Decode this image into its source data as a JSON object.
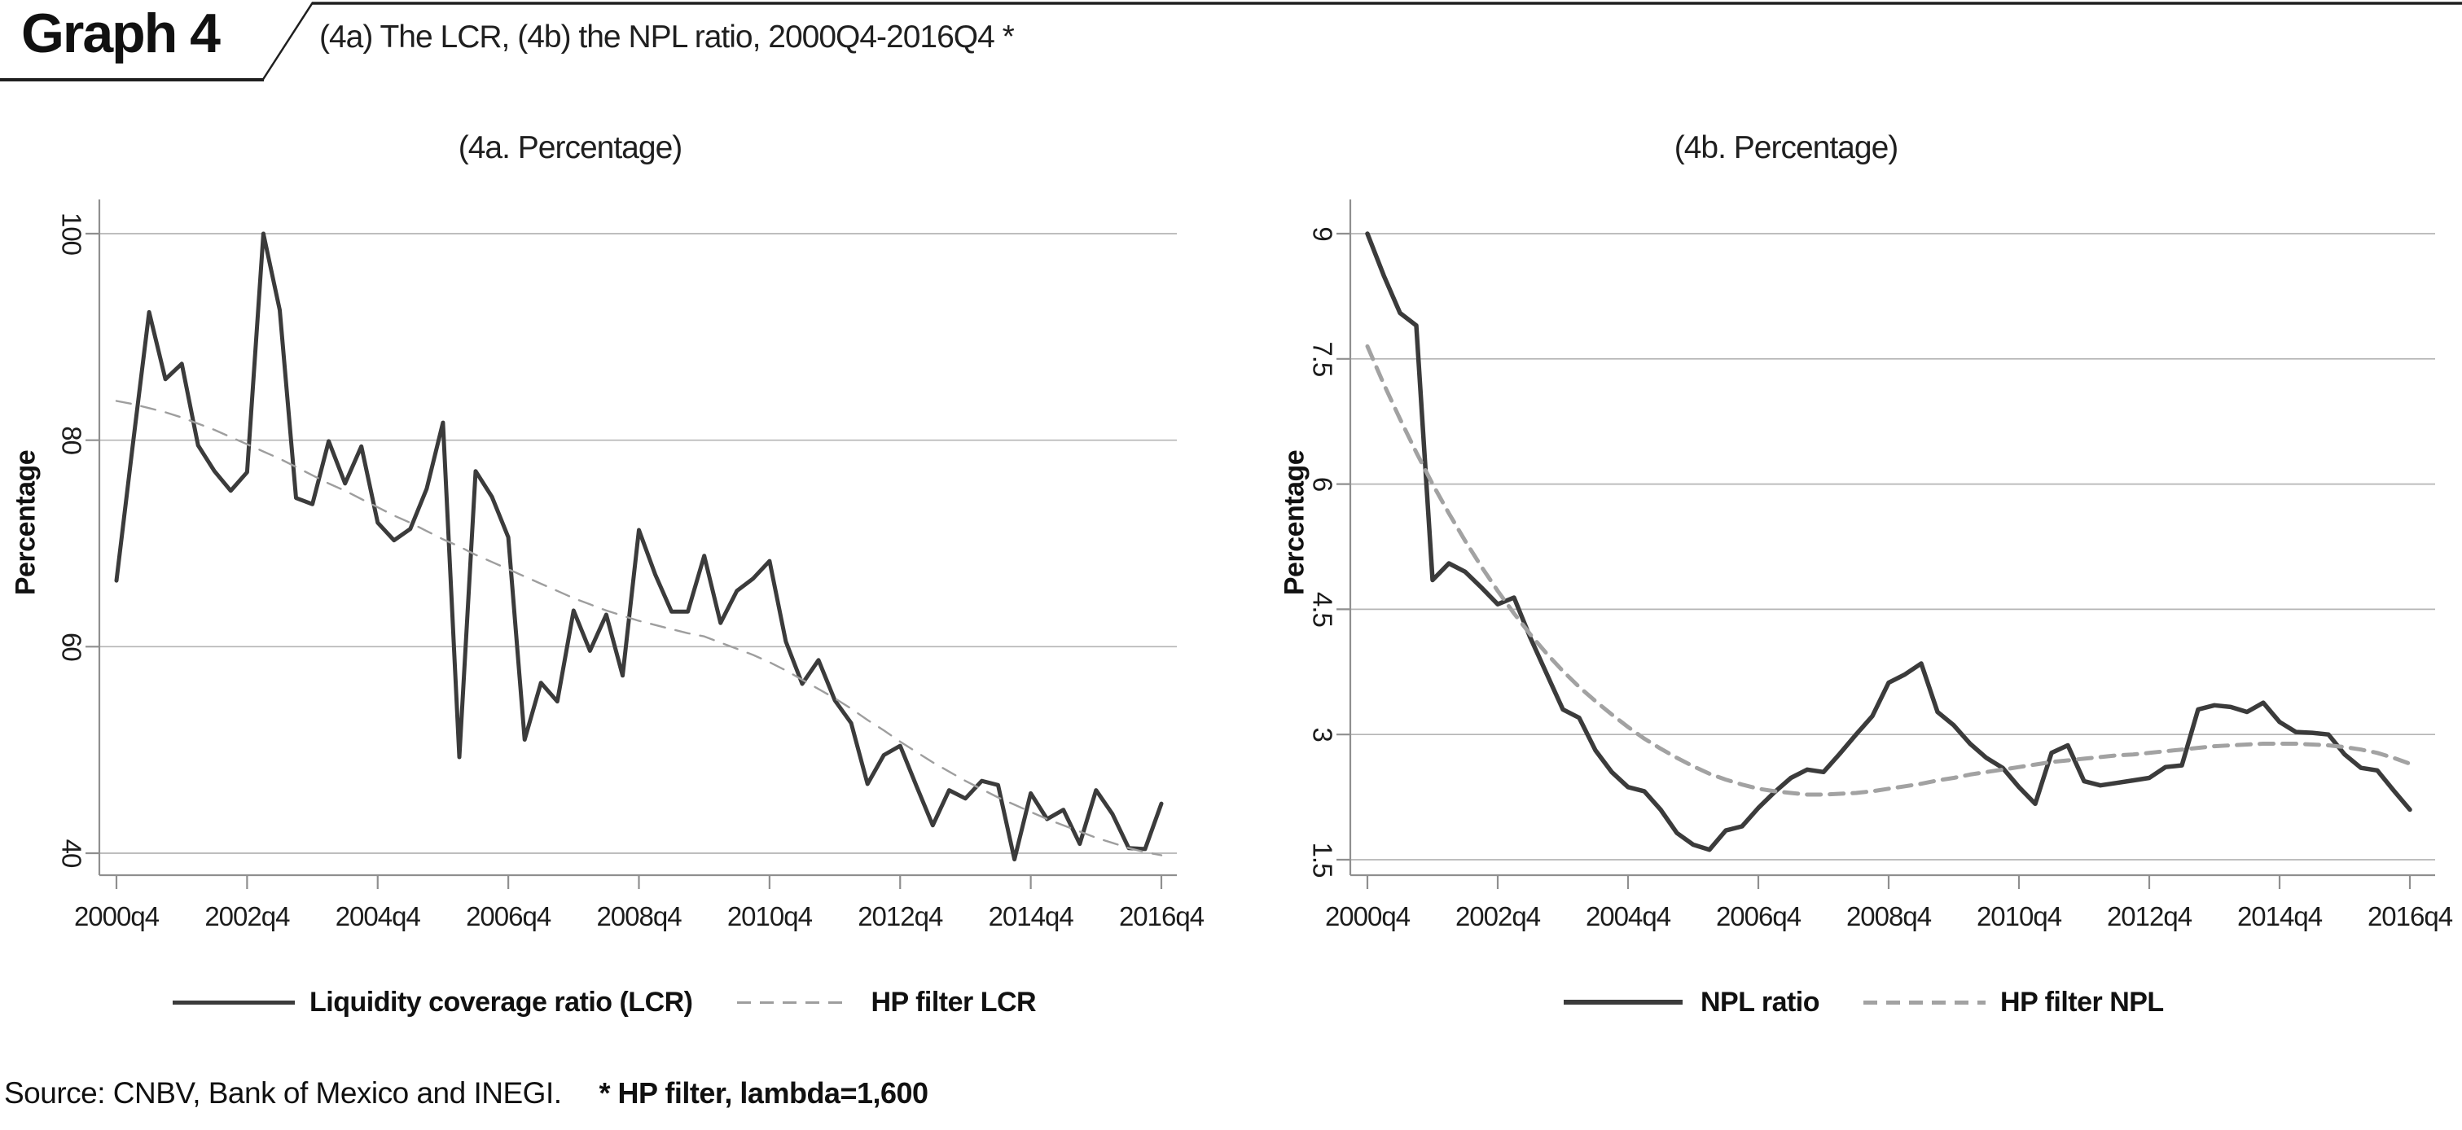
{
  "header": {
    "graph_label": "Graph 4",
    "title": "(4a) The LCR, (4b) the NPL ratio, 2000Q4-2016Q4 *"
  },
  "footer": {
    "source": "Source: CNBV, Bank of Mexico and INEGI.",
    "note": "* HP filter, lambda=1,600"
  },
  "palette": {
    "line_dark": "#3b3b3b",
    "hp_gray": "#9e9e9e",
    "grid": "#b5b5b5",
    "axis": "#8f8f8f",
    "text": "#1c1c1c"
  },
  "chart_data": [
    {
      "type": "line",
      "panel_title": "(4a. Percentage)",
      "ylabel": "Percentage",
      "x_tick_labels": [
        "2000q4",
        "2002q4",
        "2004q4",
        "2006q4",
        "2008q4",
        "2010q4",
        "2012q4",
        "2014q4",
        "2016q4"
      ],
      "quarters": 65,
      "yticks": [
        40,
        60,
        80,
        100
      ],
      "ylim": [
        37.9,
        103.3
      ],
      "grid": true,
      "legend_position": "bottom",
      "series": [
        {
          "name": "Liquidity coverage ratio (LCR)",
          "style": "solid",
          "color": "#3b3b3b",
          "width": 5,
          "values": [
            66.4,
            79.5,
            92.4,
            85.9,
            87.4,
            79.5,
            77.0,
            75.1,
            76.9,
            100.0,
            92.6,
            74.4,
            73.8,
            79.9,
            75.8,
            79.4,
            72.0,
            70.3,
            71.4,
            75.3,
            81.7,
            49.3,
            77.0,
            74.5,
            70.6,
            51.0,
            56.5,
            54.7,
            63.5,
            59.6,
            63.1,
            57.2,
            71.3,
            67.0,
            63.4,
            63.4,
            68.8,
            62.3,
            65.4,
            66.6,
            68.3,
            60.5,
            56.4,
            58.7,
            54.8,
            52.6,
            46.7,
            49.5,
            50.4,
            46.5,
            42.7,
            46.1,
            45.3,
            47.0,
            46.6,
            39.4,
            45.8,
            43.3,
            44.2,
            40.9,
            46.1,
            43.8,
            40.5,
            40.4,
            44.8
          ]
        },
        {
          "name": "HP filter LCR",
          "style": "dashed",
          "color": "#9e9e9e",
          "width": 2.4,
          "dash": "18,13",
          "values": [
            83.8,
            83.5,
            83.1,
            82.7,
            82.2,
            81.6,
            81.0,
            80.3,
            79.6,
            78.9,
            78.2,
            77.4,
            76.6,
            75.8,
            75.1,
            74.3,
            73.5,
            72.7,
            72.0,
            71.2,
            70.4,
            69.7,
            68.9,
            68.2,
            67.5,
            66.8,
            66.1,
            65.4,
            64.7,
            64.1,
            63.5,
            63.0,
            62.5,
            62.1,
            61.7,
            61.3,
            61.0,
            60.4,
            59.8,
            59.2,
            58.5,
            57.7,
            56.8,
            55.9,
            55.0,
            54.0,
            52.9,
            51.9,
            50.8,
            49.8,
            48.8,
            47.9,
            47.0,
            46.2,
            45.4,
            44.7,
            44.0,
            43.3,
            42.7,
            42.1,
            41.5,
            41.0,
            40.5,
            40.1,
            39.8
          ]
        }
      ]
    },
    {
      "type": "line",
      "panel_title": "(4b. Percentage)",
      "ylabel": "Percentage",
      "x_tick_labels": [
        "2000q4",
        "2002q4",
        "2004q4",
        "2006q4",
        "2008q4",
        "2010q4",
        "2012q4",
        "2014q4",
        "2016q4"
      ],
      "quarters": 65,
      "yticks": [
        1.5,
        3,
        4.5,
        6,
        7.5,
        9
      ],
      "ylim": [
        1.31,
        9.41
      ],
      "grid": true,
      "legend_position": "bottom",
      "series": [
        {
          "name": "NPL ratio",
          "style": "solid",
          "color": "#3b3b3b",
          "width": 5.5,
          "values": [
            9.0,
            8.5,
            8.05,
            7.9,
            4.85,
            5.05,
            4.95,
            4.76,
            4.56,
            4.64,
            4.16,
            3.73,
            3.3,
            3.2,
            2.81,
            2.55,
            2.37,
            2.32,
            2.1,
            1.82,
            1.68,
            1.62,
            1.85,
            1.9,
            2.12,
            2.31,
            2.48,
            2.58,
            2.55,
            2.77,
            3.0,
            3.22,
            3.62,
            3.72,
            3.85,
            3.27,
            3.11,
            2.89,
            2.72,
            2.6,
            2.37,
            2.17,
            2.78,
            2.87,
            2.44,
            2.39,
            2.42,
            2.45,
            2.48,
            2.61,
            2.63,
            3.3,
            3.35,
            3.33,
            3.27,
            3.38,
            3.15,
            3.03,
            3.02,
            3.0,
            2.76,
            2.6,
            2.57,
            2.33,
            2.1
          ]
        },
        {
          "name": "HP filter NPL",
          "style": "dashed",
          "color": "#a2a2a2",
          "width": 5,
          "dash": "17,11",
          "values": [
            7.65,
            7.2,
            6.78,
            6.38,
            6.0,
            5.65,
            5.32,
            5.01,
            4.72,
            4.45,
            4.2,
            3.97,
            3.76,
            3.57,
            3.4,
            3.24,
            3.09,
            2.95,
            2.83,
            2.72,
            2.62,
            2.53,
            2.46,
            2.4,
            2.35,
            2.32,
            2.3,
            2.28,
            2.28,
            2.29,
            2.3,
            2.32,
            2.35,
            2.38,
            2.41,
            2.45,
            2.48,
            2.52,
            2.55,
            2.58,
            2.61,
            2.64,
            2.67,
            2.69,
            2.71,
            2.73,
            2.75,
            2.76,
            2.78,
            2.8,
            2.82,
            2.84,
            2.86,
            2.87,
            2.88,
            2.89,
            2.89,
            2.89,
            2.88,
            2.87,
            2.85,
            2.82,
            2.78,
            2.72,
            2.65
          ]
        }
      ]
    }
  ]
}
